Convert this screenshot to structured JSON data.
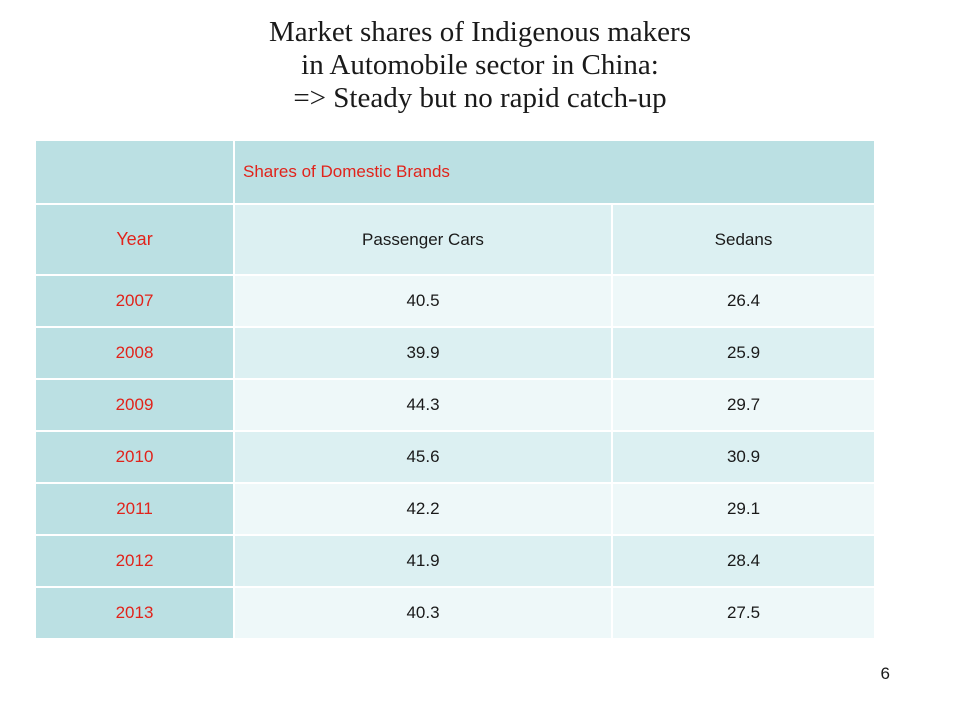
{
  "title": {
    "lines": [
      "Market shares of Indigenous makers",
      "in Automobile sector in China:",
      "=> Steady but no rapid catch-up"
    ]
  },
  "table": {
    "group_header": "Shares of Domestic Brands",
    "columns": [
      "Year",
      "Passenger Cars",
      "Sedans"
    ],
    "rows": [
      {
        "year": "2007",
        "passenger_cars": "40.5",
        "sedans": "26.4"
      },
      {
        "year": "2008",
        "passenger_cars": "39.9",
        "sedans": "25.9"
      },
      {
        "year": "2009",
        "passenger_cars": "44.3",
        "sedans": "29.7"
      },
      {
        "year": "2010",
        "passenger_cars": "45.6",
        "sedans": "30.9"
      },
      {
        "year": "2011",
        "passenger_cars": "42.2",
        "sedans": "29.1"
      },
      {
        "year": "2012",
        "passenger_cars": "41.9",
        "sedans": "28.4"
      },
      {
        "year": "2013",
        "passenger_cars": "40.3",
        "sedans": "27.5"
      }
    ]
  },
  "page_number": "6",
  "colors": {
    "accent_text": "#e1231b",
    "header_fill": "#bbe0e3",
    "row_fill_light": "#eef8f9",
    "row_fill_dark": "#dcf0f2"
  }
}
